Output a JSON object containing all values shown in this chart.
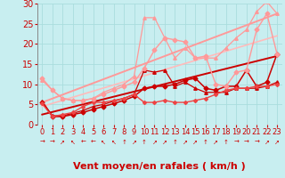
{
  "title": "",
  "xlabel": "Vent moyen/en rafales ( km/h )",
  "ylabel": "",
  "bg_color": "#c8eef0",
  "grid_color": "#aadddd",
  "xlim": [
    -0.5,
    23.5
  ],
  "ylim": [
    0,
    30
  ],
  "xticks": [
    0,
    1,
    2,
    3,
    4,
    5,
    6,
    7,
    8,
    9,
    10,
    11,
    12,
    13,
    14,
    15,
    16,
    17,
    18,
    19,
    20,
    21,
    22,
    23
  ],
  "yticks": [
    0,
    5,
    10,
    15,
    20,
    25,
    30
  ],
  "series": [
    {
      "comment": "dark red line 1 - zigzag medium",
      "x": [
        0,
        1,
        2,
        3,
        4,
        5,
        6,
        7,
        8,
        9,
        10,
        11,
        12,
        13,
        14,
        15,
        16,
        17,
        18,
        19,
        20,
        21,
        22,
        23
      ],
      "y": [
        5.8,
        2.2,
        2.2,
        2.8,
        3.5,
        4.5,
        5.0,
        5.8,
        6.5,
        7.5,
        13.5,
        13.0,
        13.5,
        9.5,
        10.5,
        9.0,
        8.0,
        8.0,
        8.0,
        9.0,
        9.0,
        9.0,
        9.5,
        10.5
      ],
      "color": "#cc0000",
      "lw": 0.9,
      "marker": "^",
      "ms": 2.5
    },
    {
      "comment": "dark red line 2 - lower",
      "x": [
        0,
        1,
        2,
        3,
        4,
        5,
        6,
        7,
        8,
        9,
        10,
        11,
        12,
        13,
        14,
        15,
        16,
        17,
        18,
        19,
        20,
        21,
        22,
        23
      ],
      "y": [
        5.5,
        2.0,
        2.0,
        2.5,
        3.0,
        3.8,
        4.5,
        5.2,
        6.0,
        7.0,
        9.0,
        9.5,
        9.5,
        10.0,
        11.0,
        11.5,
        9.0,
        8.5,
        9.5,
        9.5,
        13.5,
        9.5,
        10.5,
        17.5
      ],
      "color": "#cc0000",
      "lw": 1.1,
      "marker": "D",
      "ms": 2.5
    },
    {
      "comment": "dark red straight line regression",
      "x": [
        0,
        23
      ],
      "y": [
        2.5,
        17.0
      ],
      "color": "#cc0000",
      "lw": 1.4,
      "marker": null,
      "ms": 0
    },
    {
      "comment": "medium red line - fairly straight increasing",
      "x": [
        0,
        1,
        2,
        3,
        4,
        5,
        6,
        7,
        8,
        9,
        10,
        11,
        12,
        13,
        14,
        15,
        16,
        17,
        18,
        19,
        20,
        21,
        22,
        23
      ],
      "y": [
        5.2,
        2.0,
        2.5,
        3.0,
        4.5,
        5.5,
        5.5,
        6.0,
        6.5,
        7.5,
        5.5,
        5.5,
        6.0,
        5.5,
        5.5,
        6.0,
        6.5,
        7.5,
        8.5,
        9.0,
        9.0,
        9.5,
        9.5,
        10.0
      ],
      "color": "#ee4444",
      "lw": 1.0,
      "marker": "D",
      "ms": 2.0
    },
    {
      "comment": "light red/pink line 1 - high peaks",
      "x": [
        0,
        1,
        2,
        3,
        4,
        5,
        6,
        7,
        8,
        9,
        10,
        11,
        12,
        13,
        14,
        15,
        16,
        17,
        18,
        19,
        20,
        21,
        22,
        23
      ],
      "y": [
        11.5,
        8.5,
        6.5,
        6.0,
        6.0,
        6.5,
        7.5,
        8.5,
        9.5,
        10.5,
        14.0,
        18.5,
        21.5,
        21.0,
        20.5,
        16.5,
        17.0,
        10.0,
        9.5,
        13.0,
        13.5,
        23.5,
        27.5,
        17.5
      ],
      "color": "#ff9999",
      "lw": 1.0,
      "marker": "D",
      "ms": 2.5
    },
    {
      "comment": "light pink line 2 - highest peak at x=11",
      "x": [
        0,
        1,
        2,
        3,
        4,
        5,
        6,
        7,
        8,
        9,
        10,
        11,
        12,
        13,
        14,
        15,
        16,
        17,
        18,
        19,
        20,
        21,
        22,
        23
      ],
      "y": [
        11.0,
        8.5,
        6.5,
        6.0,
        6.0,
        6.5,
        8.0,
        9.0,
        10.0,
        12.0,
        26.5,
        26.5,
        21.5,
        16.5,
        19.0,
        16.5,
        16.5,
        16.5,
        19.0,
        21.5,
        23.5,
        28.0,
        30.5,
        27.5
      ],
      "color": "#ff9999",
      "lw": 0.9,
      "marker": "^",
      "ms": 2.5
    },
    {
      "comment": "pink straight line regression upper",
      "x": [
        0,
        23
      ],
      "y": [
        5.5,
        27.5
      ],
      "color": "#ff9999",
      "lw": 1.4,
      "marker": null,
      "ms": 0
    },
    {
      "comment": "pink straight line regression lower",
      "x": [
        0,
        23
      ],
      "y": [
        4.5,
        22.0
      ],
      "color": "#ffbbbb",
      "lw": 1.2,
      "marker": null,
      "ms": 0
    }
  ],
  "arrow_chars": [
    "→",
    "→",
    "↗",
    "↖",
    "←",
    "←",
    "↖",
    "↖",
    "↑",
    "↗",
    "↑",
    "↗",
    "↗",
    "↑",
    "↗",
    "↗",
    "↑",
    "↗",
    "↑",
    "→",
    "→",
    "→",
    "↗",
    "↗"
  ],
  "arrow_color": "#cc0000",
  "xlabel_color": "#cc0000",
  "xlabel_fontsize": 8,
  "tick_color": "#cc0000",
  "tick_fontsize": 6,
  "ytick_color": "#cc0000",
  "ytick_fontsize": 7
}
